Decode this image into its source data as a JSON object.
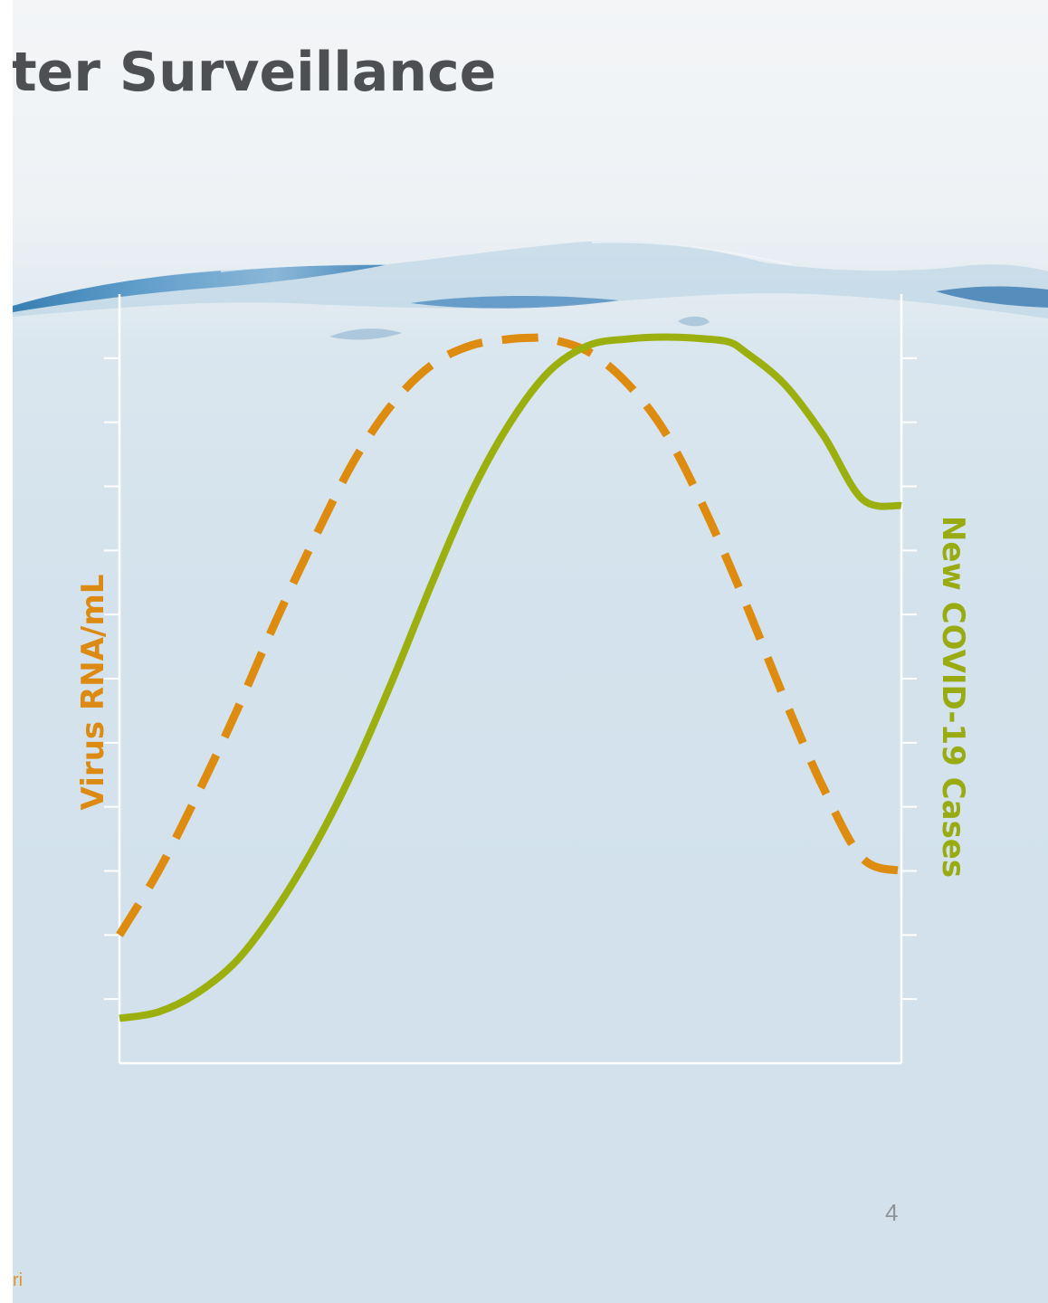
{
  "slide": {
    "title": "ter Surveillance",
    "slide_number": "4",
    "footer_fragment": "ri"
  },
  "colors": {
    "rna_series": "#dd8c0f",
    "cases_series": "#9bb00f",
    "axis": "#ffffff",
    "title": "#4d4f52"
  },
  "chart_data": {
    "type": "line",
    "title": "",
    "xlabel": "",
    "ylabel_left": "Virus RNA/mL",
    "ylabel_right": "New COVID-19 Cases",
    "x_range": [
      0,
      100
    ],
    "y_range_left": [
      0,
      12
    ],
    "y_range_right": [
      0,
      12
    ],
    "grid": false,
    "tick_count": 11,
    "series": [
      {
        "axis": "left",
        "style": "dashed",
        "x": [
          0,
          5,
          10,
          15,
          20,
          25,
          30,
          35,
          40,
          45,
          50,
          53,
          55,
          60,
          65,
          70,
          75,
          80,
          85,
          90,
          95,
          100
        ],
        "y": [
          2.0,
          3.0,
          4.2,
          5.5,
          6.9,
          8.2,
          9.4,
          10.3,
          10.9,
          11.2,
          11.3,
          11.32,
          11.3,
          11.1,
          10.6,
          9.8,
          8.6,
          7.2,
          5.7,
          4.3,
          3.2,
          3.0
        ]
      },
      {
        "axis": "right",
        "style": "solid",
        "x": [
          0,
          5,
          10,
          15,
          20,
          25,
          30,
          35,
          40,
          45,
          50,
          55,
          60,
          65,
          70,
          75,
          78,
          80,
          85,
          90,
          95,
          100
        ],
        "y": [
          0.7,
          0.8,
          1.1,
          1.6,
          2.4,
          3.4,
          4.6,
          6.0,
          7.5,
          8.9,
          10.0,
          10.8,
          11.2,
          11.3,
          11.33,
          11.3,
          11.25,
          11.1,
          10.6,
          9.8,
          8.8,
          8.7
        ]
      }
    ]
  }
}
